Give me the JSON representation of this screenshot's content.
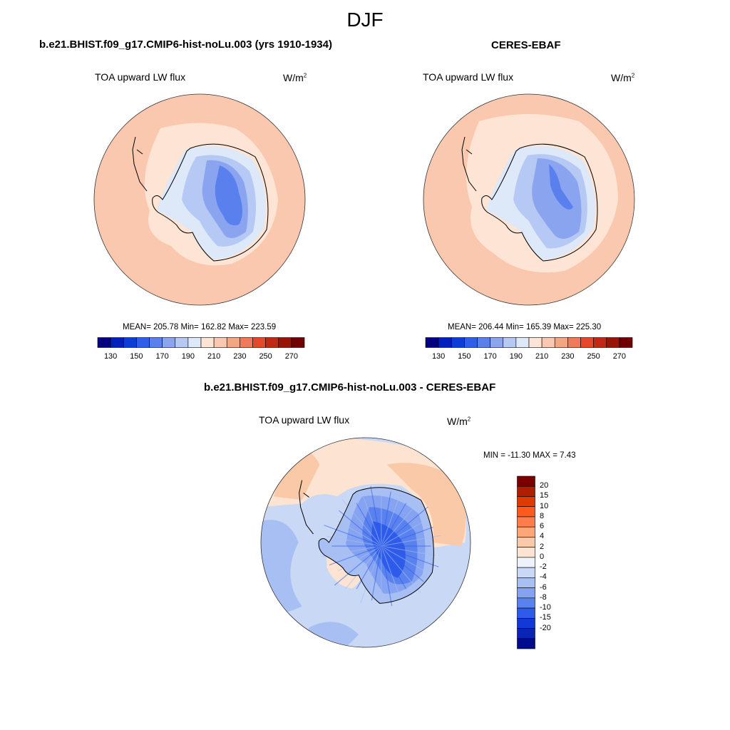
{
  "title": "DJF",
  "panels": {
    "model": {
      "title": "b.e21.BHIST.f09_g17.CMIP6-hist-noLu.003 (yrs 1910-1934)",
      "variable": "TOA upward LW flux",
      "units": "W/m",
      "units_sup": "2",
      "stats": "MEAN= 205.78  Min= 162.82  Max= 223.59"
    },
    "obs": {
      "title": "CERES-EBAF",
      "variable": "TOA upward LW flux",
      "units": "W/m",
      "units_sup": "2",
      "stats": "MEAN= 206.44  Min= 165.39  Max= 225.30"
    },
    "diff": {
      "title": "b.e21.BHIST.f09_g17.CMIP6-hist-noLu.003 - CERES-EBAF",
      "variable": "TOA upward LW flux",
      "units": "W/m",
      "units_sup": "2",
      "stats": "MIN = -11.30 MAX =   7.43"
    }
  },
  "colorbars": {
    "abs": {
      "colors": [
        "#000080",
        "#0020b8",
        "#0a3fd6",
        "#2e5fe8",
        "#5a80ee",
        "#8aa4f0",
        "#b6c8f4",
        "#dde8f8",
        "#fde4d4",
        "#f9c8ae",
        "#f4a582",
        "#ef7a55",
        "#e34a28",
        "#c02a10",
        "#9a1406",
        "#700000"
      ],
      "ticks": [
        "130",
        "150",
        "170",
        "190",
        "210",
        "230",
        "250",
        "270"
      ]
    },
    "diff": {
      "colors": [
        "#7a0000",
        "#b01e00",
        "#e03a00",
        "#ff5a1e",
        "#ff7d4a",
        "#fca77a",
        "#f9c9a8",
        "#fde4d2",
        "#eef3fb",
        "#c9d8f4",
        "#a7bff2",
        "#85a3f0",
        "#5a82ee",
        "#2e5bea",
        "#1238d8",
        "#0a24b8",
        "#000c8c"
      ],
      "ticks": [
        "20",
        "15",
        "10",
        "8",
        "6",
        "4",
        "2",
        "0",
        "-2",
        "-4",
        "-6",
        "-8",
        "-10",
        "-15",
        "-20"
      ]
    }
  },
  "map_colors": {
    "ocean_abs": "#f9c8ae",
    "ocean_abs_light": "#fde4d4",
    "ocean_abs_dark": "#f4a582",
    "ant_1": "#dde8f8",
    "ant_2": "#b6c8f4",
    "ant_3": "#8aa4f0",
    "ant_4": "#5a80ee",
    "diff_pos_1": "#fde4d2",
    "diff_pos_2": "#f9c9a8",
    "diff_neg_1": "#c9d8f4",
    "diff_neg_2": "#a7bff2",
    "diff_neg_3": "#85a3f0",
    "diff_neg_4": "#5a82ee",
    "diff_neg_5": "#2e5bea"
  }
}
